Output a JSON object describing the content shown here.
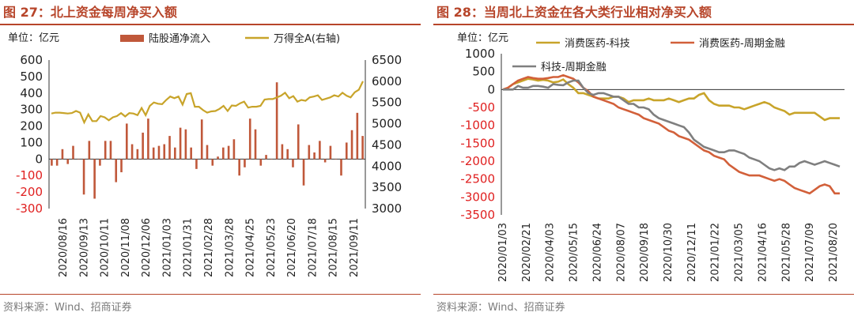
{
  "left": {
    "title": "图 27：北上资金每周净买入额",
    "source": "资料来源：Wind、招商证券",
    "chart_data": {
      "type": "bar+line",
      "unit_label": "单位：亿元",
      "legend": [
        "陆股通净流入",
        "万得全A(右轴)"
      ],
      "colors": {
        "bar": "#c0583a",
        "line": "#c8a42a",
        "neg_tick": "#e02020",
        "axis": "#333333"
      },
      "yleft": {
        "min": -300,
        "max": 600,
        "ticks": [
          -300,
          -200,
          -100,
          0,
          100,
          200,
          300,
          400,
          500,
          600
        ]
      },
      "yright": {
        "min": 3000,
        "max": 6500,
        "ticks": [
          3000,
          3500,
          4000,
          4500,
          5000,
          5500,
          6000,
          6500
        ]
      },
      "xtick_labels": [
        "2020/08/16",
        "2020/09/13",
        "2020/10/11",
        "2020/11/08",
        "2020/12/06",
        "2021/01/03",
        "2021/01/31",
        "2021/02/28",
        "2021/03/28",
        "2021/04/25",
        "2021/05/23",
        "2021/06/20",
        "2021/07/18",
        "2021/08/15",
        "2021/09/11"
      ],
      "bars": [
        -40,
        -40,
        60,
        -30,
        80,
        0,
        -215,
        110,
        -240,
        -40,
        110,
        110,
        -140,
        -80,
        215,
        90,
        60,
        160,
        245,
        70,
        80,
        90,
        140,
        70,
        190,
        180,
        70,
        -60,
        240,
        85,
        -40,
        15,
        70,
        80,
        120,
        -100,
        -50,
        245,
        180,
        -40,
        25,
        0,
        465,
        90,
        60,
        -50,
        210,
        -160,
        85,
        40,
        110,
        -20,
        80,
        0,
        -100,
        100,
        175,
        280,
        140
      ],
      "line": [
        5240,
        5260,
        5260,
        5250,
        5240,
        5250,
        5300,
        5260,
        5030,
        5220,
        5060,
        5060,
        5180,
        5150,
        5080,
        5150,
        5180,
        5250,
        5170,
        5250,
        5240,
        5200,
        5370,
        5200,
        5420,
        5500,
        5470,
        5460,
        5560,
        5640,
        5600,
        5640,
        5450,
        5700,
        5720,
        5400,
        5400,
        5320,
        5260,
        5290,
        5300,
        5350,
        5420,
        5300,
        5430,
        5420,
        5480,
        5520,
        5380,
        5400,
        5400,
        5420,
        5570,
        5580,
        5580,
        5620,
        5660,
        5730,
        5600,
        5650,
        5520,
        5560,
        5540,
        5620,
        5640,
        5670,
        5560,
        5590,
        5620,
        5670,
        5640,
        5730,
        5660,
        5620,
        5740,
        5800,
        6000
      ]
    }
  },
  "right": {
    "title": "图 28：当周北上资金在各大类行业相对净买入额",
    "source": "资料来源：Wind、招商证券",
    "chart_data": {
      "type": "line",
      "unit_label": "单位：亿元",
      "colors": {
        "axis": "#333333",
        "neg_tick": "#e02020"
      },
      "ylim": [
        -3500,
        1000
      ],
      "yticks": [
        -3500,
        -3000,
        -2500,
        -2000,
        -1500,
        -1000,
        -500,
        0,
        500,
        1000
      ],
      "xtick_labels": [
        "2020/01/03",
        "2020/02/21",
        "2020/04/03",
        "2020/05/15",
        "2020/06/24",
        "2020/08/07",
        "2020/09/18",
        "2020/10/30",
        "2020/12/11",
        "2021/01/22",
        "2021/03/05",
        "2021/04/16",
        "2021/05/28",
        "2021/07/09",
        "2021/08/20"
      ],
      "series": [
        {
          "name": "消费医药-科技",
          "color": "#c8a42a",
          "values": [
            0,
            50,
            150,
            200,
            250,
            300,
            280,
            250,
            270,
            250,
            200,
            220,
            280,
            150,
            50,
            -100,
            -100,
            -150,
            -200,
            -250,
            -250,
            -250,
            -200,
            -200,
            -250,
            -350,
            -300,
            -300,
            -300,
            -250,
            -300,
            -300,
            -300,
            -250,
            -300,
            -350,
            -300,
            -250,
            -250,
            -150,
            -100,
            -300,
            -400,
            -450,
            -450,
            -450,
            -500,
            -500,
            -550,
            -500,
            -450,
            -400,
            -350,
            -400,
            -500,
            -550,
            -600,
            -700,
            -650,
            -650,
            -650,
            -650,
            -650,
            -750,
            -850,
            -800,
            -800,
            -800
          ]
        },
        {
          "name": "消费医药-周期金融",
          "color": "#d2603a",
          "values": [
            0,
            50,
            150,
            250,
            300,
            350,
            320,
            300,
            300,
            320,
            350,
            350,
            400,
            350,
            300,
            200,
            50,
            -50,
            -200,
            -250,
            -300,
            -350,
            -400,
            -500,
            -550,
            -600,
            -650,
            -700,
            -800,
            -850,
            -900,
            -950,
            -1050,
            -1150,
            -1200,
            -1300,
            -1350,
            -1400,
            -1500,
            -1600,
            -1700,
            -1750,
            -1850,
            -1900,
            -1950,
            -2100,
            -2200,
            -2300,
            -2350,
            -2400,
            -2400,
            -2400,
            -2450,
            -2500,
            -2550,
            -2500,
            -2550,
            -2650,
            -2750,
            -2800,
            -2850,
            -2900,
            -2800,
            -2700,
            -2650,
            -2700,
            -2900,
            -2900
          ]
        },
        {
          "name": "科技-周期金融",
          "color": "#7f7f7f",
          "values": [
            0,
            0,
            0,
            100,
            50,
            50,
            100,
            100,
            80,
            50,
            150,
            130,
            120,
            200,
            250,
            250,
            50,
            -100,
            -150,
            -100,
            -100,
            -150,
            -200,
            -200,
            -300,
            -400,
            -400,
            -500,
            -500,
            -550,
            -700,
            -800,
            -850,
            -900,
            -950,
            -1000,
            -1050,
            -1200,
            -1400,
            -1500,
            -1600,
            -1650,
            -1700,
            -1750,
            -1750,
            -1700,
            -1700,
            -1750,
            -1800,
            -1900,
            -1950,
            -2000,
            -2100,
            -2200,
            -2250,
            -2200,
            -2250,
            -2150,
            -2150,
            -2050,
            -2000,
            -2050,
            -2100,
            -2050,
            -2000,
            -2050,
            -2100,
            -2150
          ]
        }
      ]
    }
  }
}
